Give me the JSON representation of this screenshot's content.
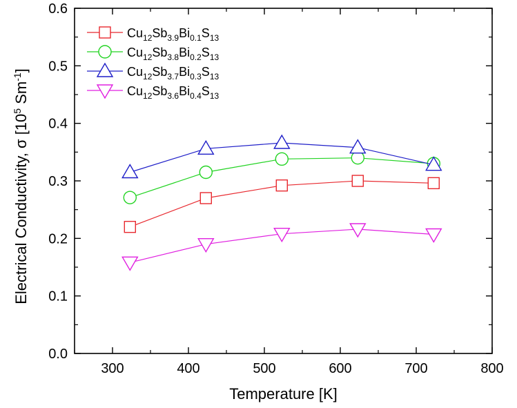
{
  "chart_data": {
    "type": "line",
    "xlabel": "Temperature [K]",
    "ylabel": {
      "main": "Electrical Conductivity, σ [10",
      "sup1": "5",
      "mid": " Sm",
      "sup2": "-1",
      "end": "]"
    },
    "xlim": [
      250,
      800
    ],
    "ylim": [
      0.0,
      0.6
    ],
    "x_ticks": [
      300,
      400,
      500,
      600,
      700,
      800
    ],
    "y_ticks": [
      0.0,
      0.1,
      0.2,
      0.3,
      0.4,
      0.5,
      0.6
    ],
    "x_tick_labels": [
      "300",
      "400",
      "500",
      "600",
      "700",
      "800"
    ],
    "y_tick_labels": [
      "0.0",
      "0.1",
      "0.2",
      "0.3",
      "0.4",
      "0.5",
      "0.6"
    ],
    "legend_position": "top-left",
    "x": [
      323,
      423,
      523,
      623,
      723
    ],
    "series": [
      {
        "marker": "square",
        "color": "#e8282e",
        "label": {
          "a": "Cu",
          "a_sub": "12",
          "b": "Sb",
          "b_sub": "3.9",
          "c": "Bi",
          "c_sub": "0.1",
          "d": "S",
          "d_sub": "13"
        },
        "values": [
          0.22,
          0.27,
          0.292,
          0.3,
          0.296
        ]
      },
      {
        "marker": "circle",
        "color": "#22d322",
        "label": {
          "a": "Cu",
          "a_sub": "12",
          "b": "Sb",
          "b_sub": "3.8",
          "c": "Bi",
          "c_sub": "0.2",
          "d": "S",
          "d_sub": "13"
        },
        "values": [
          0.271,
          0.315,
          0.338,
          0.34,
          0.33
        ]
      },
      {
        "marker": "triangle-up",
        "color": "#1e1ec8",
        "label": {
          "a": "Cu",
          "a_sub": "12",
          "b": "Sb",
          "b_sub": "3.7",
          "c": "Bi",
          "c_sub": "0.3",
          "d": "S",
          "d_sub": "13"
        },
        "values": [
          0.315,
          0.356,
          0.366,
          0.358,
          0.328
        ]
      },
      {
        "marker": "triangle-down",
        "color": "#e020e0",
        "label": {
          "a": "Cu",
          "a_sub": "12",
          "b": "Sb",
          "b_sub": "3.6",
          "c": "Bi",
          "c_sub": "0.4",
          "d": "S",
          "d_sub": "13"
        },
        "values": [
          0.158,
          0.19,
          0.208,
          0.216,
          0.207
        ]
      }
    ]
  }
}
